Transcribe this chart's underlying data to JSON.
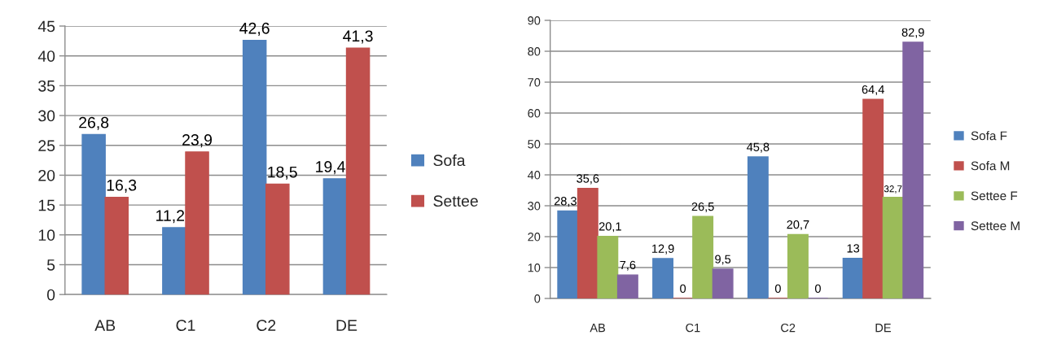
{
  "chart_data": [
    {
      "type": "bar",
      "categories": [
        "AB",
        "C1",
        "C2",
        "DE"
      ],
      "series": [
        {
          "name": "Sofa",
          "color": "#4f81bd",
          "values": [
            26.8,
            11.2,
            42.6,
            19.4
          ],
          "value_labels": [
            "26,8",
            "11,2",
            "42,6",
            "19,4"
          ]
        },
        {
          "name": "Settee",
          "color": "#c0504d",
          "values": [
            16.3,
            23.9,
            18.5,
            41.3
          ],
          "value_labels": [
            "16,3",
            "23,9",
            "18,5",
            "41,3"
          ]
        }
      ],
      "ylim": [
        0,
        45
      ],
      "yticks": [
        0,
        5,
        10,
        15,
        20,
        25,
        30,
        35,
        40,
        45
      ],
      "grid": "y",
      "legend": "right"
    },
    {
      "type": "bar",
      "categories": [
        "AB",
        "C1",
        "C2",
        "DE"
      ],
      "series": [
        {
          "name": "Sofa F",
          "color": "#4f81bd",
          "values": [
            28.3,
            12.9,
            45.8,
            13
          ],
          "value_labels": [
            "28,3",
            "12,9",
            "45,8",
            "13"
          ]
        },
        {
          "name": "Sofa M",
          "color": "#c0504d",
          "values": [
            35.6,
            0,
            0,
            64.4
          ],
          "value_labels": [
            "35,6",
            "0",
            "0",
            "64,4"
          ]
        },
        {
          "name": "Settee F",
          "color": "#9bbb59",
          "values": [
            20.1,
            26.5,
            20.7,
            32.7
          ],
          "value_labels": [
            "20,1",
            "26,5",
            "20,7",
            "32,7"
          ]
        },
        {
          "name": "Settee M",
          "color": "#8064a2",
          "values": [
            7.6,
            9.5,
            0,
            82.9
          ],
          "value_labels": [
            "7,6",
            "9,5",
            "0",
            "82,9"
          ]
        }
      ],
      "ylim": [
        0,
        90
      ],
      "yticks": [
        0,
        10,
        20,
        30,
        40,
        50,
        60,
        70,
        80,
        90
      ],
      "grid": "y",
      "legend": "right"
    }
  ]
}
